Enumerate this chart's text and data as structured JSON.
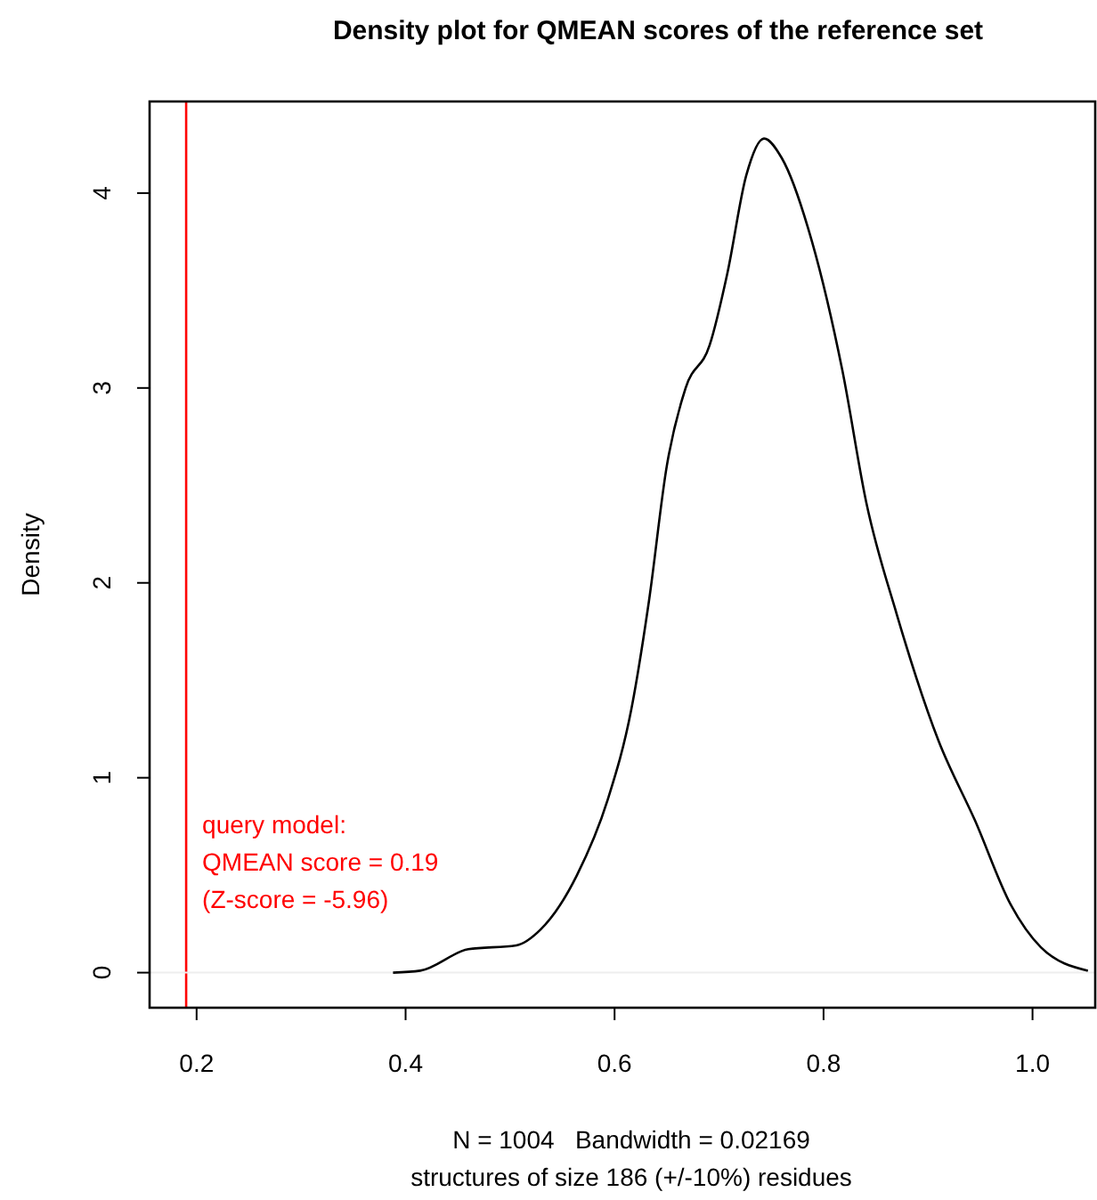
{
  "chart_data": {
    "type": "line",
    "title": "Density plot for QMEAN scores of the reference set",
    "xlabel": "N = 1004   Bandwidth = 0.02169",
    "ylabel": "Density",
    "annotations": [
      "structures of size 186 (+/-10%) residues"
    ],
    "series": [
      {
        "color": "#000000",
        "x": [
          0.388,
          0.414,
          0.46,
          0.506,
          0.529,
          0.564,
          0.593,
          0.616,
          0.633,
          0.65,
          0.668,
          0.691,
          0.708,
          0.726,
          0.743,
          0.76,
          0.789,
          0.818,
          0.841,
          0.87,
          0.91,
          0.945,
          0.979,
          1.008,
          1.053
        ],
        "values": [
          0,
          0.01,
          0.12,
          0.14,
          0.22,
          0.5,
          0.88,
          1.35,
          1.91,
          2.6,
          3.0,
          3.22,
          3.59,
          4.09,
          4.28,
          4.18,
          3.75,
          3.09,
          2.41,
          1.84,
          1.19,
          0.78,
          0.35,
          0.13,
          0.01
        ]
      }
    ],
    "xlim": [
      0.155,
      1.06
    ],
    "ylim": [
      -0.18,
      4.47
    ],
    "xticks": [
      {
        "value": 0.2,
        "label": "0.2"
      },
      {
        "value": 0.4,
        "label": "0.4"
      },
      {
        "value": 0.6,
        "label": "0.6"
      },
      {
        "value": 0.8,
        "label": "0.8"
      },
      {
        "value": 1.0,
        "label": "1.0"
      }
    ],
    "yticks": [
      0,
      1,
      2,
      3,
      4
    ],
    "ref_lines": [
      {
        "axis": "x",
        "value": 0.19,
        "label": "query model:\nQMEAN score = 0.19\n(Z-score = -5.96)",
        "color": "#ff0000"
      },
      {
        "axis": "y",
        "value": 0,
        "color": "#eeeeee"
      }
    ],
    "grid": false,
    "marker": "none",
    "line_style": "solid"
  }
}
